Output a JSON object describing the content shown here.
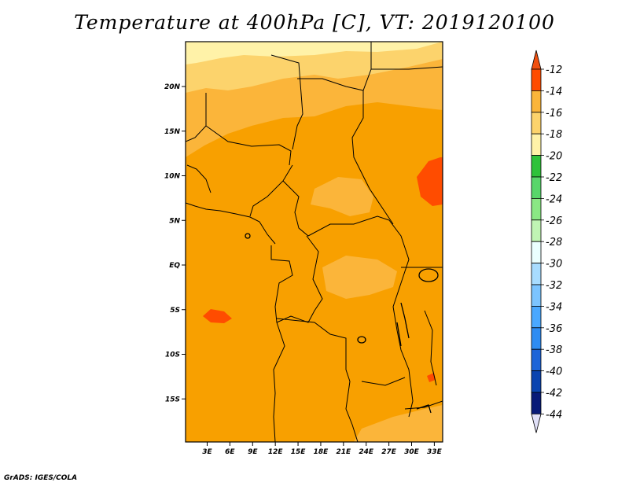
{
  "title": "Temperature at 400hPa [C], VT: 2019120100",
  "credit": "GrADS: IGES/COLA",
  "map": {
    "lat_labels": [
      {
        "label": "20N",
        "lat": 20
      },
      {
        "label": "15N",
        "lat": 15
      },
      {
        "label": "10N",
        "lat": 10
      },
      {
        "label": "5N",
        "lat": 5
      },
      {
        "label": "EQ",
        "lat": 0
      },
      {
        "label": "5S",
        "lat": -5
      },
      {
        "label": "10S",
        "lat": -10
      },
      {
        "label": "15S",
        "lat": -15
      }
    ],
    "lon_labels": [
      {
        "label": "3E",
        "lon": 3
      },
      {
        "label": "6E",
        "lon": 6
      },
      {
        "label": "9E",
        "lon": 9
      },
      {
        "label": "12E",
        "lon": 12
      },
      {
        "label": "15E",
        "lon": 15
      },
      {
        "label": "18E",
        "lon": 18
      },
      {
        "label": "21E",
        "lon": 21
      },
      {
        "label": "24E",
        "lon": 24
      },
      {
        "label": "27E",
        "lon": 27
      },
      {
        "label": "30E",
        "lon": 30
      },
      {
        "label": "33E",
        "lon": 33
      }
    ],
    "base_fill_color": "#f8a000"
  },
  "colorbar": {
    "levels": [
      "-12",
      "-14",
      "-16",
      "-18",
      "-20",
      "-22",
      "-24",
      "-26",
      "-28",
      "-30",
      "-32",
      "-34",
      "-36",
      "-38",
      "-40",
      "-42",
      "-44"
    ],
    "colors": [
      "#ff4c00",
      "#f8a000",
      "#fbb53a",
      "#fcd36c",
      "#fff2a8",
      "#2ec23a",
      "#58d66a",
      "#8ae884",
      "#c0f4b4",
      "#eaffff",
      "#a8dcff",
      "#7cc4ff",
      "#4aa8ff",
      "#2e8cf2",
      "#1c64d8",
      "#0a44b0",
      "#081a78"
    ],
    "top_arrow_color": "#f05010",
    "bottom_arrow_color": "#e0e0f8"
  }
}
